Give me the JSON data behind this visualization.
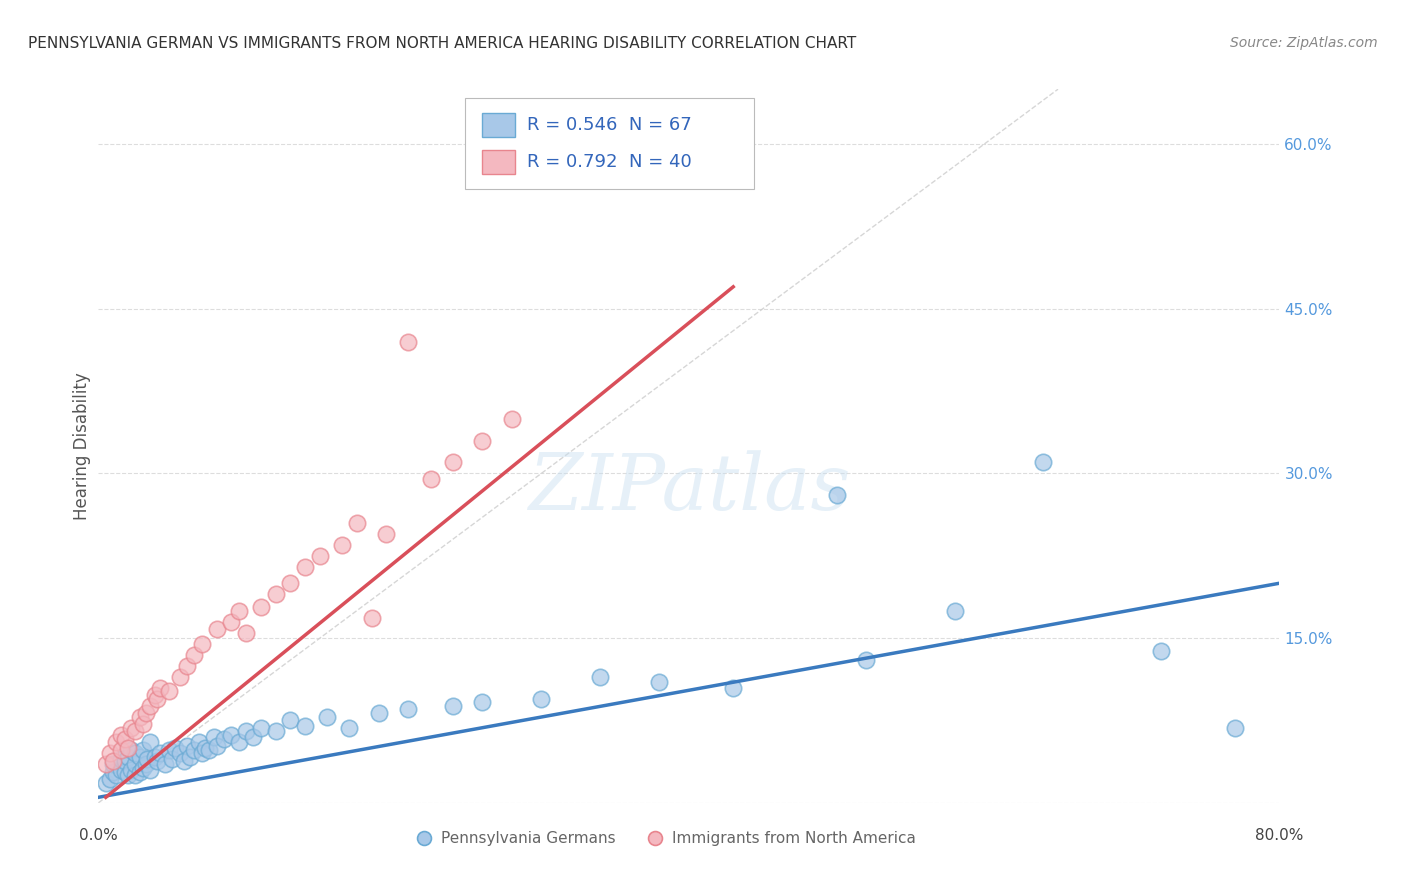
{
  "title": "PENNSYLVANIA GERMAN VS IMMIGRANTS FROM NORTH AMERICA HEARING DISABILITY CORRELATION CHART",
  "source": "Source: ZipAtlas.com",
  "ylabel": "Hearing Disability",
  "x_min": 0.0,
  "x_max": 0.8,
  "y_min": 0.0,
  "y_max": 0.65,
  "x_ticks": [
    0.0,
    0.1,
    0.2,
    0.3,
    0.4,
    0.5,
    0.6,
    0.7,
    0.8
  ],
  "y_ticks": [
    0.0,
    0.15,
    0.3,
    0.45,
    0.6
  ],
  "blue_R": 0.546,
  "blue_N": 67,
  "pink_R": 0.792,
  "pink_N": 40,
  "blue_color": "#a8c8e8",
  "blue_edge_color": "#6aaad4",
  "blue_line_color": "#3a7abf",
  "pink_color": "#f4b8c0",
  "pink_edge_color": "#e8858e",
  "pink_line_color": "#d94f5a",
  "diagonal_color": "#cccccc",
  "background_color": "#ffffff",
  "grid_color": "#dddddd",
  "watermark": "ZIPatlas",
  "title_color": "#333333",
  "source_color": "#888888",
  "ylabel_color": "#555555",
  "right_tick_color": "#5599dd",
  "legend_text_color": "#3366bb",
  "bottom_legend_color": "#666666",
  "blue_scatter_x": [
    0.005,
    0.008,
    0.01,
    0.01,
    0.012,
    0.015,
    0.015,
    0.018,
    0.018,
    0.02,
    0.02,
    0.022,
    0.022,
    0.025,
    0.025,
    0.025,
    0.028,
    0.028,
    0.03,
    0.03,
    0.032,
    0.033,
    0.035,
    0.035,
    0.038,
    0.04,
    0.042,
    0.045,
    0.048,
    0.05,
    0.052,
    0.055,
    0.058,
    0.06,
    0.062,
    0.065,
    0.068,
    0.07,
    0.072,
    0.075,
    0.078,
    0.08,
    0.085,
    0.09,
    0.095,
    0.1,
    0.105,
    0.11,
    0.12,
    0.13,
    0.14,
    0.155,
    0.17,
    0.19,
    0.21,
    0.24,
    0.26,
    0.3,
    0.34,
    0.38,
    0.43,
    0.5,
    0.52,
    0.58,
    0.64,
    0.72,
    0.77
  ],
  "blue_scatter_y": [
    0.018,
    0.022,
    0.028,
    0.035,
    0.025,
    0.03,
    0.04,
    0.028,
    0.038,
    0.025,
    0.042,
    0.03,
    0.048,
    0.025,
    0.035,
    0.045,
    0.028,
    0.042,
    0.032,
    0.048,
    0.035,
    0.04,
    0.03,
    0.055,
    0.042,
    0.038,
    0.045,
    0.035,
    0.048,
    0.04,
    0.05,
    0.045,
    0.038,
    0.052,
    0.042,
    0.048,
    0.055,
    0.045,
    0.05,
    0.048,
    0.06,
    0.052,
    0.058,
    0.062,
    0.055,
    0.065,
    0.06,
    0.068,
    0.065,
    0.075,
    0.07,
    0.078,
    0.068,
    0.082,
    0.085,
    0.088,
    0.092,
    0.095,
    0.115,
    0.11,
    0.105,
    0.28,
    0.13,
    0.175,
    0.31,
    0.138,
    0.068
  ],
  "pink_scatter_x": [
    0.005,
    0.008,
    0.01,
    0.012,
    0.015,
    0.015,
    0.018,
    0.02,
    0.022,
    0.025,
    0.028,
    0.03,
    0.032,
    0.035,
    0.038,
    0.04,
    0.042,
    0.048,
    0.055,
    0.06,
    0.065,
    0.07,
    0.08,
    0.09,
    0.095,
    0.1,
    0.11,
    0.12,
    0.13,
    0.14,
    0.15,
    0.165,
    0.175,
    0.185,
    0.195,
    0.21,
    0.225,
    0.24,
    0.26,
    0.28
  ],
  "pink_scatter_y": [
    0.035,
    0.045,
    0.038,
    0.055,
    0.048,
    0.062,
    0.058,
    0.05,
    0.068,
    0.065,
    0.078,
    0.072,
    0.082,
    0.088,
    0.098,
    0.095,
    0.105,
    0.102,
    0.115,
    0.125,
    0.135,
    0.145,
    0.158,
    0.165,
    0.175,
    0.155,
    0.178,
    0.19,
    0.2,
    0.215,
    0.225,
    0.235,
    0.255,
    0.168,
    0.245,
    0.42,
    0.295,
    0.31,
    0.33,
    0.35
  ],
  "blue_line_x": [
    0.0,
    0.8
  ],
  "blue_line_y": [
    0.005,
    0.2
  ],
  "pink_line_x": [
    0.005,
    0.43
  ],
  "pink_line_y": [
    0.005,
    0.47
  ],
  "diag_line_x": [
    0.0,
    0.65
  ],
  "diag_line_y": [
    0.0,
    0.65
  ]
}
